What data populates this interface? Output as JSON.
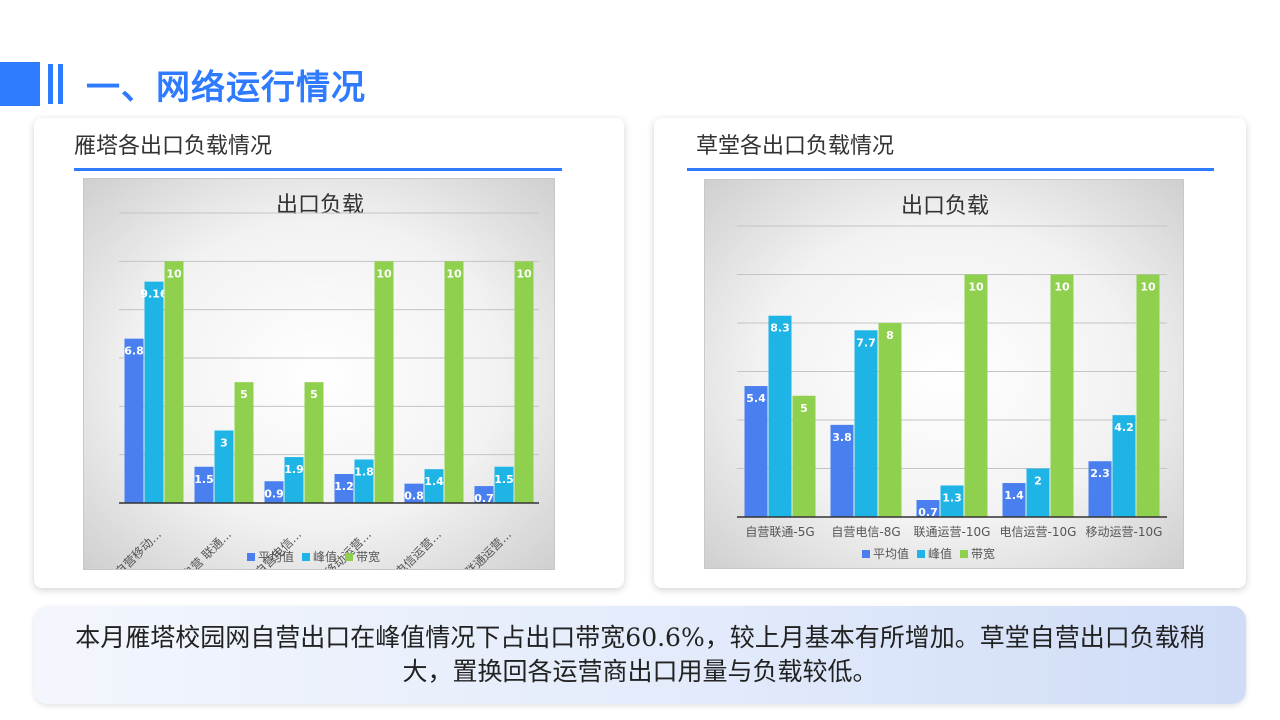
{
  "page": {
    "title": "一、网络运行情况",
    "summary": "本月雁塔校园网自营出口在峰值情况下占出口带宽60.6%，较上月基本有所增加。草堂自营出口负载稍大，置换回各运营商出口用量与负载较低。"
  },
  "left_panel": {
    "title": "雁塔各出口负载情况"
  },
  "right_panel": {
    "title": "草堂各出口负载情况"
  },
  "colors": {
    "accent": "#2e7bff",
    "avg": "#4a7ff0",
    "peak": "#1fb4e6",
    "bandwidth": "#8fd14f"
  },
  "chart_data": [
    {
      "type": "bar",
      "title": "出口负载",
      "categories": [
        "自营移动...",
        "自营 联通...",
        "自营电信...",
        "移动运营...",
        "电信运营...",
        "联通运营..."
      ],
      "series": [
        {
          "name": "平均值",
          "values": [
            6.8,
            1.5,
            0.9,
            1.2,
            0.8,
            0.7
          ]
        },
        {
          "name": "峰值",
          "values": [
            9.16,
            3,
            1.9,
            1.8,
            1.4,
            1.5
          ]
        },
        {
          "name": "带宽",
          "values": [
            10,
            5,
            5,
            10,
            10,
            10
          ]
        }
      ],
      "ylim": [
        0,
        12
      ],
      "grid": true,
      "legend": "bottom"
    },
    {
      "type": "bar",
      "title": "出口负载",
      "categories": [
        "自营联通-5G",
        "自营电信-8G",
        "联通运营-10G",
        "电信运营-10G",
        "移动运营-10G"
      ],
      "series": [
        {
          "name": "平均值",
          "values": [
            5.4,
            3.8,
            0.7,
            1.4,
            2.3
          ]
        },
        {
          "name": "峰值",
          "values": [
            8.3,
            7.7,
            1.3,
            2,
            4.2
          ]
        },
        {
          "name": "带宽",
          "values": [
            5,
            8,
            10,
            10,
            10
          ]
        }
      ],
      "ylim": [
        0,
        12
      ],
      "grid": true,
      "legend": "bottom"
    }
  ]
}
